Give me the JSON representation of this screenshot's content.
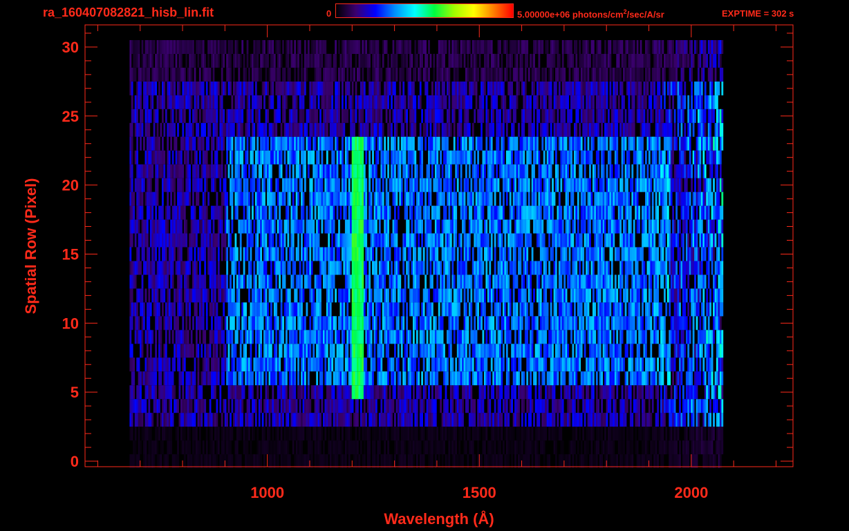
{
  "header": {
    "filename": "ra_160407082821_hisb_lin.fit",
    "colorbar_min": "0",
    "colorbar_max_value": "5.00000e+06 photons/cm",
    "colorbar_max_sup": "2",
    "colorbar_max_unit": "/sec/A/sr",
    "exptime": "EXPTIME = 302 s"
  },
  "colors": {
    "axes": "#ff2a1a",
    "background": "#000000",
    "colormap": [
      "#000000",
      "#3a006e",
      "#0000ff",
      "#0090ff",
      "#00ffff",
      "#00ff40",
      "#a0ff00",
      "#ffff00",
      "#ff8000",
      "#ff0000"
    ]
  },
  "chart_data": {
    "type": "heatmap",
    "title": "",
    "xlabel": "Wavelength (Å)",
    "ylabel": "Spatial Row (Pixel)",
    "xlim": [
      570,
      2240
    ],
    "ylim": [
      -0.4,
      31.6
    ],
    "x_ticks": [
      1000,
      1500,
      2000
    ],
    "x_tick_labels": [
      "1000",
      "1500",
      "2000"
    ],
    "y_ticks": [
      0,
      5,
      10,
      15,
      20,
      25,
      30
    ],
    "y_tick_labels": [
      "0",
      "5",
      "10",
      "15",
      "20",
      "25",
      "30"
    ],
    "colorbar_range": [
      0,
      5000000
    ],
    "data_extent": {
      "x": [
        675,
        2075
      ],
      "rows": [
        0,
        30
      ]
    },
    "bright_rows": [
      6,
      23
    ],
    "emission_line": {
      "wavelength": 1216,
      "rows": [
        5,
        23
      ]
    }
  }
}
